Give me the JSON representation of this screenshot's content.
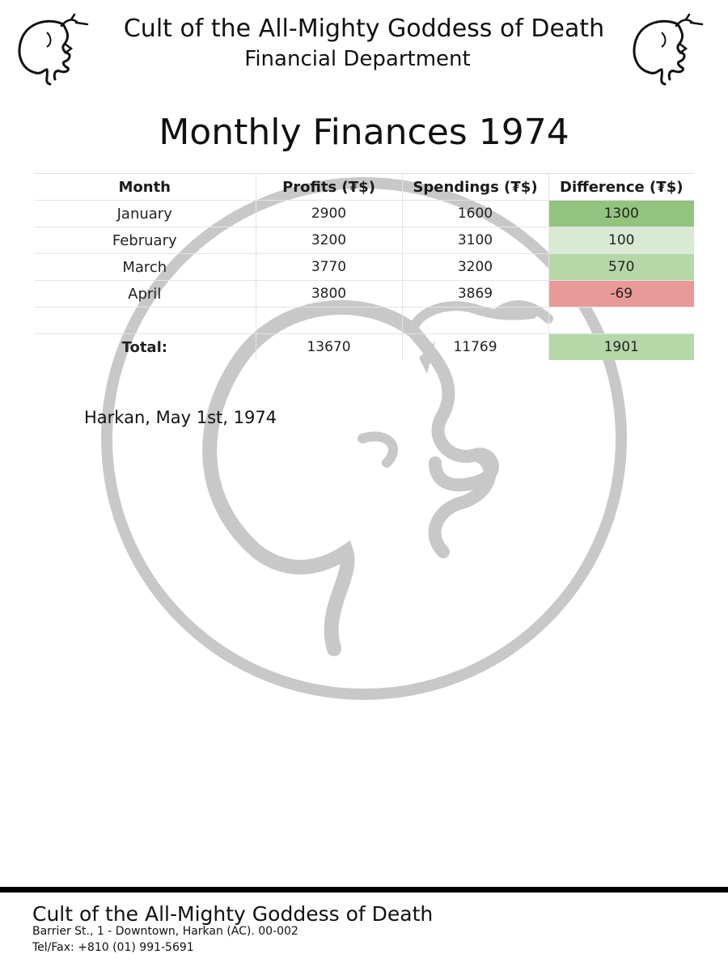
{
  "header": {
    "organization": "Cult of the All-Mighty Goddess of Death",
    "department": "Financial Department",
    "logo_icon": "skull-profile-icon"
  },
  "document": {
    "title": "Monthly Finances 1974",
    "place_date": "Harkan, May 1st, 1974",
    "watermark_icon": "skull-profile-circle-watermark"
  },
  "table": {
    "headers": [
      "Month",
      "Profits (₮$)",
      "Spendings (₮$)",
      "Difference (₮$)"
    ],
    "rows": [
      {
        "month": "January",
        "profits": "2900",
        "spendings": "1600",
        "difference": "1300",
        "diff_color": "#93c47d"
      },
      {
        "month": "February",
        "profits": "3200",
        "spendings": "3100",
        "difference": "100",
        "diff_color": "#d9ead3"
      },
      {
        "month": "March",
        "profits": "3770",
        "spendings": "3200",
        "difference": "570",
        "diff_color": "#b6d7a8"
      },
      {
        "month": "April",
        "profits": "3800",
        "spendings": "3869",
        "difference": "-69",
        "diff_color": "#ea9999"
      }
    ],
    "total": {
      "label": "Total:",
      "profits": "13670",
      "spendings": "11769",
      "difference": "1901",
      "diff_color": "#b6d7a8"
    }
  },
  "footer": {
    "organization": "Cult of the All-Mighty Goddess of Death",
    "address": "Barrier St., 1 - Downtown, Harkan (AC). 00-002",
    "phone": "Tel/Fax: +810 (01) 991-5691"
  }
}
